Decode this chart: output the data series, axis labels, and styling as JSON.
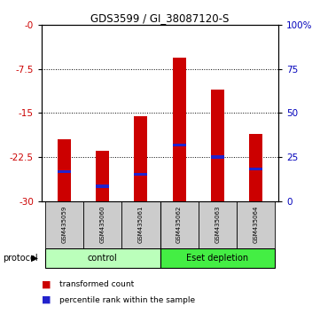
{
  "title": "GDS3599 / GI_38087120-S",
  "samples": [
    "GSM435059",
    "GSM435060",
    "GSM435061",
    "GSM435062",
    "GSM435063",
    "GSM435064"
  ],
  "red_bar_tops": [
    -19.5,
    -21.5,
    -15.5,
    -5.5,
    -11.0,
    -18.5
  ],
  "red_bar_bottom": -30,
  "blue_marker_pos": [
    -25.0,
    -27.5,
    -25.5,
    -20.5,
    -22.5,
    -24.5
  ],
  "ylim_left": [
    -30,
    0
  ],
  "yticks_left": [
    -30,
    -22.5,
    -15,
    -7.5,
    0
  ],
  "ytick_labels_left": [
    "-30",
    "-22.5",
    "-15",
    "-7.5",
    "-0"
  ],
  "yticks_right": [
    0,
    25,
    50,
    75,
    100
  ],
  "ytick_labels_right": [
    "0",
    "25",
    "50",
    "75",
    "100%"
  ],
  "ylim_right": [
    0,
    100
  ],
  "left_color": "#cc0000",
  "right_color": "#0000bb",
  "bar_color": "#cc0000",
  "blue_color": "#2222cc",
  "bar_width": 0.35,
  "ctrl_color": "#bbffbb",
  "eset_color": "#44ee44",
  "sample_box_color": "#cccccc",
  "protocol_label": "protocol",
  "legend_red": "transformed count",
  "legend_blue": "percentile rank within the sample",
  "figsize": [
    3.61,
    3.54
  ],
  "dpi": 100
}
